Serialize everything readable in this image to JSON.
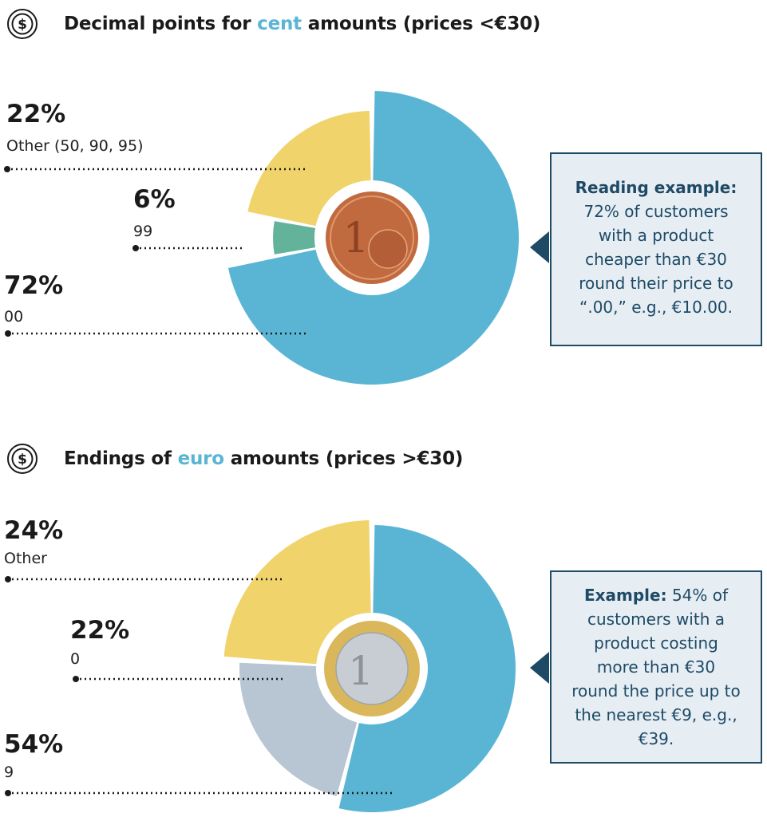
{
  "colors": {
    "blue": "#5ab5d4",
    "yellow": "#f0d36b",
    "green": "#63b39a",
    "grey": "#b8c5d3",
    "navy": "#1e4a66"
  },
  "icons": {
    "title": "dollar-coin-icon",
    "coin_top": "one-cent-coin",
    "coin_bottom": "one-euro-coin"
  },
  "chart_data": [
    {
      "type": "pie",
      "title_parts": [
        "Decimal points for ",
        "cent",
        " amounts (prices <€30)"
      ],
      "slices": [
        {
          "value": 22,
          "pct_label": "22%",
          "label": "Other (50, 90, 95)",
          "color": "#f0d36b"
        },
        {
          "value": 6,
          "pct_label": "6%",
          "label": "99",
          "color": "#63b39a"
        },
        {
          "value": 72,
          "pct_label": "72%",
          "label": "00",
          "color": "#5ab5d4"
        }
      ],
      "callout": {
        "lead": "Reading example:",
        "lines": [
          "72% of customers",
          "with a product",
          "cheaper than €30",
          "round their price to",
          "“.00,” e.g., €10.00."
        ]
      }
    },
    {
      "type": "pie",
      "title_parts": [
        "Endings of ",
        "euro",
        " amounts (prices >€30)"
      ],
      "slices": [
        {
          "value": 24,
          "pct_label": "24%",
          "label": "Other",
          "color": "#f0d36b"
        },
        {
          "value": 22,
          "pct_label": "22%",
          "label": "0",
          "color": "#b8c5d3"
        },
        {
          "value": 54,
          "pct_label": "54%",
          "label": "9",
          "color": "#5ab5d4"
        }
      ],
      "callout": {
        "lead": "Example:",
        "first_rest": " 54% of",
        "lines": [
          "customers with a",
          "product costing",
          "more than €30",
          "round the price up to",
          "the nearest €9, e.g.,",
          "€39."
        ]
      }
    }
  ]
}
